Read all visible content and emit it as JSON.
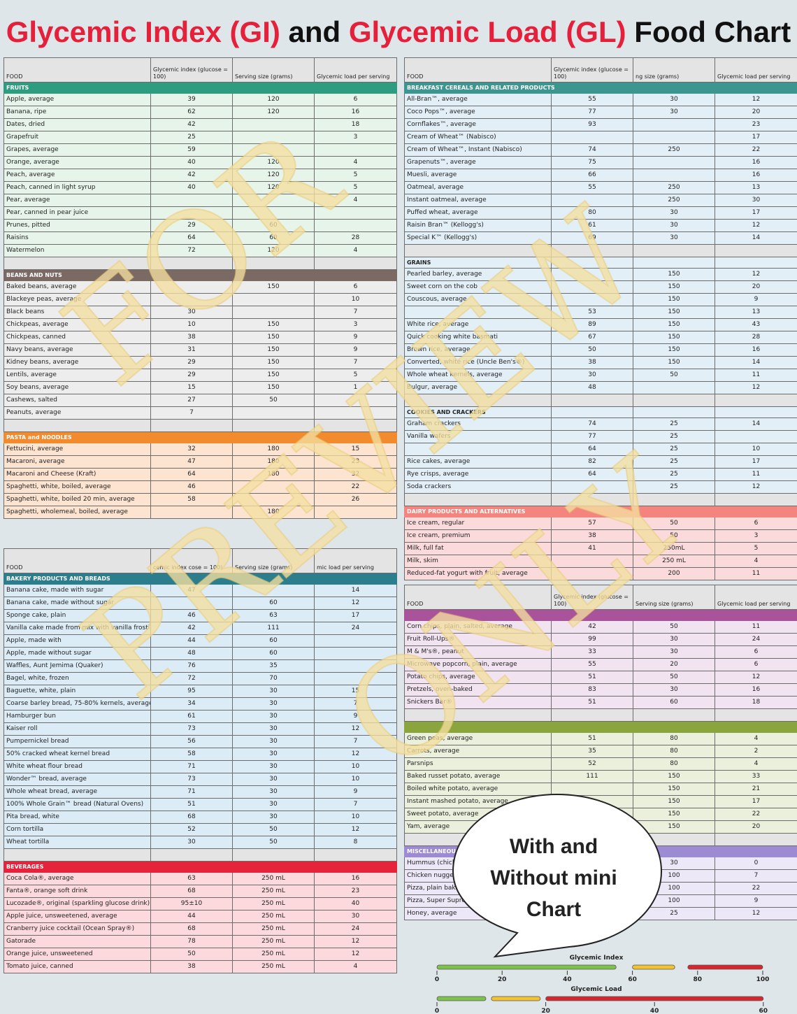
{
  "title": {
    "part1": "Glycemic Index (GI)",
    "part2": " and ",
    "part3": "Glycemic Load (GL)",
    "part4": " Food Chart"
  },
  "headers": {
    "food": "FOOD",
    "gi": "Glycemic index (glucose = 100)",
    "serving": "Serving size (grams)",
    "gl": "Glycemic load per serving"
  },
  "headers_right": {
    "food": "FOOD",
    "gi": "Glycemic index (glucose = 100)",
    "serving": "ng size (grams)",
    "gl": "Glycemic load per serving"
  },
  "headers_bakery": {
    "food": "FOOD",
    "gi": "cemic index cose = 100)",
    "serving": "Serving size (grams)",
    "gl": "mic load per serving"
  },
  "colors": {
    "fruits": "#2e9c7e",
    "beans": "#7b6a63",
    "pasta": "#f28a2e",
    "bakery": "#2d7e8c",
    "beverages": "#e5233b",
    "breakfast": "#3d9590",
    "dairy": "#f4847e",
    "snacks": "#a9549a",
    "veg": "#8aa53e",
    "misc": "#9c8ad2"
  },
  "table_fruits_beans_pasta": {
    "sections": [
      {
        "label": "FRUITS",
        "ckey": "fruits",
        "bg": "#e7f4ea",
        "rows": [
          [
            "Apple, average",
            "39",
            "120",
            "6"
          ],
          [
            "Banana, ripe",
            "62",
            "120",
            "16"
          ],
          [
            "Dates, dried",
            "42",
            "",
            "18"
          ],
          [
            "Grapefruit",
            "25",
            "",
            "3"
          ],
          [
            "Grapes, average",
            "59",
            "",
            ""
          ],
          [
            "Orange, average",
            "40",
            "120",
            "4"
          ],
          [
            "Peach, average",
            "42",
            "120",
            "5"
          ],
          [
            "Peach, canned in light syrup",
            "40",
            "120",
            "5"
          ],
          [
            "Pear, average",
            "",
            "",
            "4"
          ],
          [
            "Pear, canned in pear juice",
            "",
            "",
            ""
          ],
          [
            "Prunes, pitted",
            "29",
            "60",
            ""
          ],
          [
            "Raisins",
            "64",
            "60",
            "28"
          ],
          [
            "Watermelon",
            "72",
            "120",
            "4"
          ]
        ]
      },
      {
        "label": "BEANS AND NUTS",
        "ckey": "beans",
        "bg": "#ededed",
        "rows": [
          [
            "Baked beans, average",
            "",
            "150",
            "6"
          ],
          [
            "Blackeye peas, average",
            "",
            "",
            "10"
          ],
          [
            "Black beans",
            "30",
            "",
            "7"
          ],
          [
            "Chickpeas, average",
            "10",
            "150",
            "3"
          ],
          [
            "Chickpeas, canned",
            "38",
            "150",
            "9"
          ],
          [
            "Navy beans, average",
            "31",
            "150",
            "9"
          ],
          [
            "Kidney beans, average",
            "29",
            "150",
            "7"
          ],
          [
            "Lentils, average",
            "29",
            "150",
            "5"
          ],
          [
            "Soy beans, average",
            "15",
            "150",
            "1"
          ],
          [
            "Cashews, salted",
            "27",
            "50",
            ""
          ],
          [
            "Peanuts, average",
            "7",
            "",
            ""
          ]
        ]
      },
      {
        "label": "PASTA and NOODLES",
        "ckey": "pasta",
        "bg": "#fde4d1",
        "rows": [
          [
            "Fettucini, average",
            "32",
            "180",
            "15"
          ],
          [
            "Macaroni, average",
            "47",
            "180",
            "23"
          ],
          [
            "Macaroni and Cheese (Kraft)",
            "64",
            "180",
            "32"
          ],
          [
            "Spaghetti, white, boiled, average",
            "46",
            "",
            "22"
          ],
          [
            "Spaghetti, white, boiled 20 min, average",
            "58",
            "",
            "26"
          ],
          [
            "Spaghetti, wholemeal, boiled, average",
            "",
            "180",
            ""
          ]
        ]
      }
    ]
  },
  "table_bakery_beverages": {
    "sections": [
      {
        "label": "BAKERY PRODUCTS AND BREADS",
        "ckey": "bakery",
        "bg": "#dcecf6",
        "rows": [
          [
            "Banana cake, made with sugar",
            "47",
            "",
            "14"
          ],
          [
            "Banana cake, made without sugar",
            "",
            "60",
            "12"
          ],
          [
            "Sponge cake, plain",
            "46",
            "63",
            "17"
          ],
          [
            "Vanilla cake made from mix with vanilla frosting (Betty Crocker)",
            "42",
            "111",
            "24"
          ],
          [
            "Apple, made with",
            "44",
            "60",
            ""
          ],
          [
            "Apple, made without sugar",
            "48",
            "60",
            ""
          ],
          [
            "Waffles, Aunt Jemima (Quaker)",
            "76",
            "35",
            ""
          ],
          [
            "Bagel, white, frozen",
            "72",
            "70",
            ""
          ],
          [
            "Baguette, white, plain",
            "95",
            "30",
            "15"
          ],
          [
            "Coarse barley bread, 75-80% kernels, average",
            "34",
            "30",
            "7"
          ],
          [
            "Hamburger bun",
            "61",
            "30",
            "9"
          ],
          [
            "Kaiser roll",
            "73",
            "30",
            "12"
          ],
          [
            "Pumpernickel bread",
            "56",
            "30",
            "7"
          ],
          [
            "50% cracked wheat kernel bread",
            "58",
            "30",
            "12"
          ],
          [
            "White wheat flour bread",
            "71",
            "30",
            "10"
          ],
          [
            "Wonder™ bread, average",
            "73",
            "30",
            "10"
          ],
          [
            "Whole wheat bread, average",
            "71",
            "30",
            "9"
          ],
          [
            "100% Whole Grain™ bread (Natural Ovens)",
            "51",
            "30",
            "7"
          ],
          [
            "Pita bread, white",
            "68",
            "30",
            "10"
          ],
          [
            "Corn tortilla",
            "52",
            "50",
            "12"
          ],
          [
            "Wheat tortilla",
            "30",
            "50",
            "8"
          ]
        ]
      },
      {
        "label": "BEVERAGES",
        "ckey": "beverages",
        "bg": "#fbd9dc",
        "rows": [
          [
            "Coca Cola®, average",
            "63",
            "250 mL",
            "16"
          ],
          [
            "Fanta®, orange soft drink",
            "68",
            "250 mL",
            "23"
          ],
          [
            "Lucozade®, original (sparkling glucose drink)",
            "95±10",
            "250 mL",
            "40"
          ],
          [
            "Apple juice, unsweetened, average",
            "44",
            "250 mL",
            "30"
          ],
          [
            "Cranberry juice cocktail (Ocean Spray®)",
            "68",
            "250 mL",
            "24"
          ],
          [
            "Gatorade",
            "78",
            "250 mL",
            "12"
          ],
          [
            "Orange juice, unsweetened",
            "50",
            "250 mL",
            "12"
          ],
          [
            "Tomato juice, canned",
            "38",
            "250 mL",
            "4"
          ]
        ]
      }
    ]
  },
  "table_breakfast_dairy": {
    "sections": [
      {
        "label": "BREAKFAST CEREALS AND RELATED PRODUCTS",
        "ckey": "breakfast",
        "bg": "#e2eff6",
        "rows": [
          [
            "All-Bran™, average",
            "55",
            "30",
            "12"
          ],
          [
            "Coco Pops™, average",
            "77",
            "30",
            "20"
          ],
          [
            "Cornflakes™, average",
            "93",
            "",
            "23"
          ],
          [
            "Cream of Wheat™ (Nabisco)",
            "",
            "",
            "17"
          ],
          [
            "Cream of Wheat™, Instant (Nabisco)",
            "74",
            "250",
            "22"
          ],
          [
            "Grapenuts™, average",
            "75",
            "",
            "16"
          ],
          [
            "Muesli, average",
            "66",
            "",
            "16"
          ],
          [
            "Oatmeal, average",
            "55",
            "250",
            "13"
          ],
          [
            "Instant oatmeal, average",
            "",
            "250",
            "30"
          ],
          [
            "Puffed wheat, average",
            "80",
            "30",
            "17"
          ],
          [
            "Raisin Bran™ (Kellogg's)",
            "61",
            "30",
            "12"
          ],
          [
            "Special K™ (Kellogg's)",
            "69",
            "30",
            "14"
          ]
        ]
      },
      {
        "label": "GRAINS",
        "ckey": "",
        "bg": "#e2eff6",
        "rows": [
          [
            "Pearled barley, average",
            "",
            "150",
            "12"
          ],
          [
            "Sweet corn on the cob",
            "",
            "150",
            "20"
          ],
          [
            "Couscous, average",
            "",
            "150",
            "9"
          ],
          [
            "",
            "53",
            "150",
            "13"
          ],
          [
            "White rice, average",
            "89",
            "150",
            "43"
          ],
          [
            "Quick cooking white basmati",
            "67",
            "150",
            "28"
          ],
          [
            "Brown rice, average",
            "50",
            "150",
            "16"
          ],
          [
            "Converted, white rice (Uncle Ben's®)",
            "38",
            "150",
            "14"
          ],
          [
            "Whole wheat kernels, average",
            "30",
            "50",
            "11"
          ],
          [
            "Bulgur, average",
            "48",
            "",
            "12"
          ]
        ]
      },
      {
        "label": "COOKIES AND CRACKERS",
        "ckey": "",
        "bg": "#e2eff6",
        "rows": [
          [
            "Graham crackers",
            "74",
            "25",
            "14"
          ],
          [
            "Vanilla wafers",
            "77",
            "25",
            ""
          ],
          [
            "",
            "64",
            "25",
            "10"
          ],
          [
            "Rice cakes, average",
            "82",
            "25",
            "17"
          ],
          [
            "Rye crisps, average",
            "64",
            "25",
            "11"
          ],
          [
            "Soda crackers",
            "",
            "25",
            "12"
          ]
        ]
      },
      {
        "label": "DAIRY PRODUCTS AND ALTERNATIVES",
        "ckey": "dairy",
        "bg": "#fbdadb",
        "rows": [
          [
            "Ice cream, regular",
            "57",
            "50",
            "6"
          ],
          [
            "Ice cream, premium",
            "38",
            "50",
            "3"
          ],
          [
            "Milk, full fat",
            "41",
            "250mL",
            "5"
          ],
          [
            "Milk, skim",
            "",
            "250 mL",
            "4"
          ],
          [
            "Reduced-fat yogurt with fruit, average",
            "",
            "200",
            "11"
          ]
        ]
      }
    ]
  },
  "table_snacks_misc": {
    "sections": [
      {
        "label": "",
        "ckey": "snacks",
        "bg": "#f1e3ef",
        "rows": [
          [
            "Corn chips, plain, salted, average",
            "42",
            "50",
            "11"
          ],
          [
            "Fruit Roll-Ups®",
            "99",
            "30",
            "24"
          ],
          [
            "M & M's®, peanut",
            "33",
            "30",
            "6"
          ],
          [
            "Microwave popcorn, plain, average",
            "55",
            "20",
            "6"
          ],
          [
            "Potato chips, average",
            "51",
            "50",
            "12"
          ],
          [
            "Pretzels, oven-baked",
            "83",
            "30",
            "16"
          ],
          [
            "Snickers Bar®",
            "51",
            "60",
            "18"
          ]
        ]
      },
      {
        "label": "",
        "ckey": "veg",
        "bg": "#eaf0dc",
        "rows": [
          [
            "Green peas, average",
            "51",
            "80",
            "4"
          ],
          [
            "Carrots, average",
            "35",
            "80",
            "2"
          ],
          [
            "Parsnips",
            "52",
            "80",
            "4"
          ],
          [
            "Baked russet potato, average",
            "111",
            "150",
            "33"
          ],
          [
            "Boiled white potato, average",
            "",
            "150",
            "21"
          ],
          [
            "Instant mashed potato, average",
            "",
            "150",
            "17"
          ],
          [
            "Sweet potato, average",
            "",
            "150",
            "22"
          ],
          [
            "Yam, average",
            "",
            "150",
            "20"
          ]
        ]
      },
      {
        "label": "MISCELLANEOUS",
        "ckey": "misc",
        "bg": "#ece8f7",
        "rows": [
          [
            "Hummus (chickpea salad dip)",
            "",
            "30",
            "0"
          ],
          [
            "Chicken nuggets, frozen, reheated in microwave oven 5 min",
            "",
            "100",
            "7"
          ],
          [
            "Pizza, plain baked dough, served with parmesan cheese and tomato sauce",
            "",
            "100",
            "22"
          ],
          [
            "Pizza, Super Supreme (Pizza Hut)",
            "",
            "100",
            "9"
          ],
          [
            "Honey, average",
            "61",
            "25",
            "12"
          ]
        ]
      }
    ]
  },
  "watermark": {
    "line1": "FOR",
    "line2": "PREVIEW",
    "line3": "ONLY"
  },
  "bubble": {
    "line1": "With and",
    "line2": "Without mini",
    "line3": "Chart"
  },
  "mini_chart": {
    "gi": {
      "label": "Glycemic Index",
      "ticks": [
        "0",
        "20",
        "40",
        "60",
        "80",
        "100"
      ]
    },
    "gl": {
      "label": "Glycemic Load",
      "ticks": [
        "0",
        "20",
        "40",
        "60"
      ]
    },
    "colors": {
      "low": "#7dc24b",
      "medium": "#f2c230",
      "high": "#d9262e"
    }
  }
}
